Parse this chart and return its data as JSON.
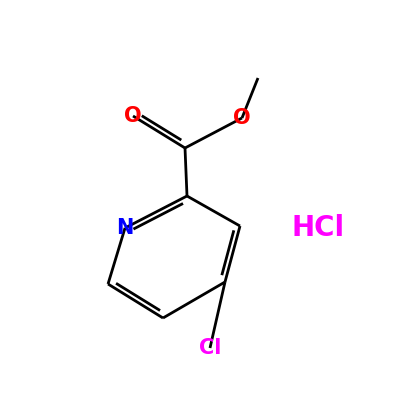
{
  "bg_color": "#ffffff",
  "bond_color": "#000000",
  "N_color": "#0000ff",
  "O_color": "#ff0000",
  "Cl_color": "#ff00ff",
  "HCl_color": "#ff00ff",
  "line_width": 2.0,
  "font_size": 15,
  "HCl_font_size": 20,
  "figsize": [
    4.02,
    4.18
  ],
  "dpi": 100,
  "HCl_text": "HCl",
  "N_text": "N",
  "O_carbonyl_text": "O",
  "O_ether_text": "O",
  "Cl_text": "Cl",
  "xlim": [
    0,
    10
  ],
  "ylim": [
    0,
    10.4
  ]
}
